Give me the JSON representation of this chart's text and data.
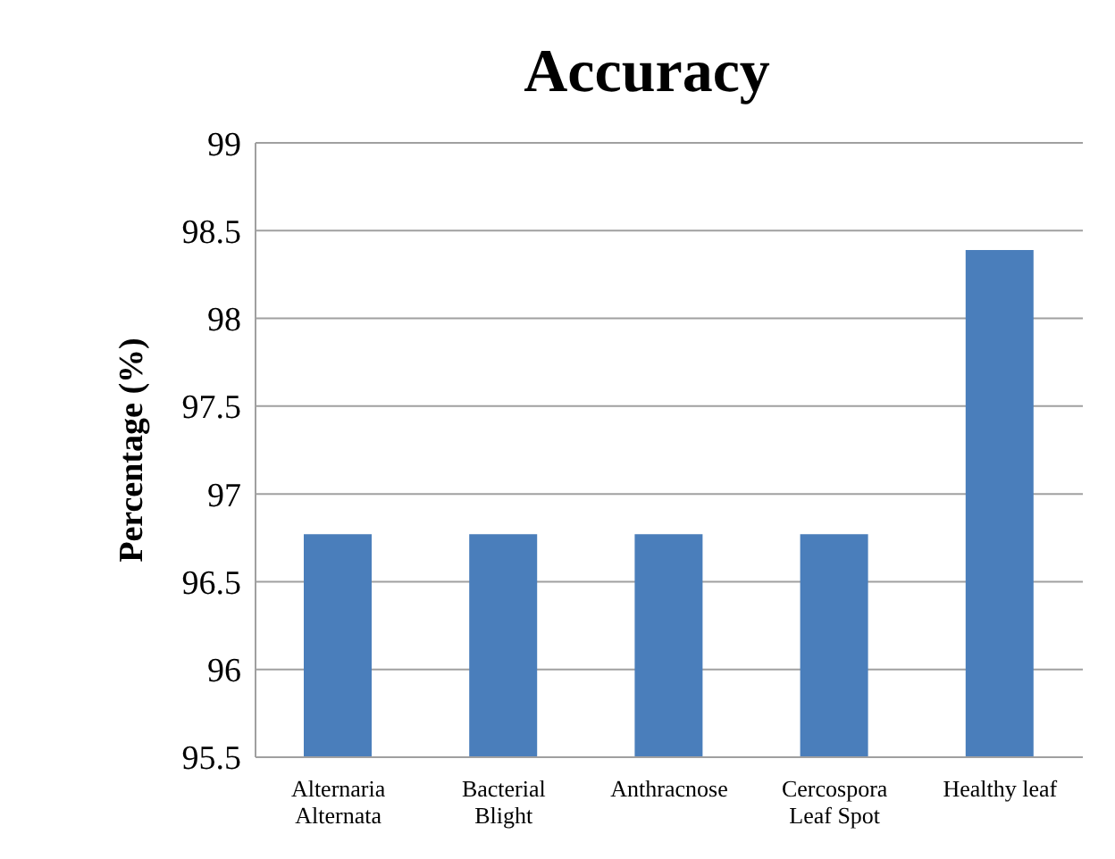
{
  "chart_data": {
    "type": "bar",
    "title": "Accuracy",
    "ylabel": "Percentage (%)",
    "categories": [
      "Alternaria Alternata",
      "Bacterial Blight",
      "Anthracnose",
      "Cercospora Leaf Spot",
      "Healthy leaf"
    ],
    "values": [
      96.77,
      96.77,
      96.77,
      96.77,
      98.39
    ],
    "color": "#4a7ebb",
    "ylim": [
      95.5,
      99
    ],
    "yticks": [
      95.5,
      96,
      96.5,
      97,
      97.5,
      98,
      98.5,
      99
    ],
    "grid": "y",
    "legend": false
  }
}
